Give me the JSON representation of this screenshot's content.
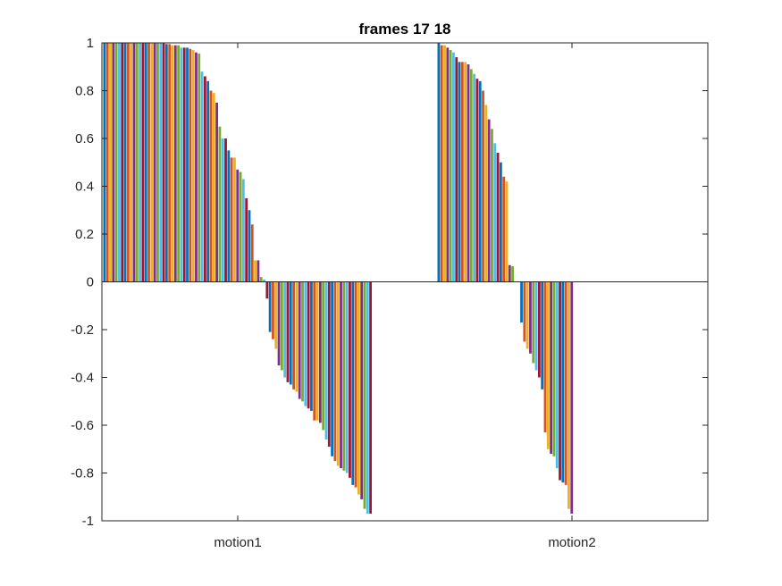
{
  "chart_data": {
    "type": "bar",
    "title": "frames 17 18",
    "xlabel": "",
    "ylabel": "",
    "categories": [
      "motion1",
      "motion2"
    ],
    "ylim": [
      -1,
      1
    ],
    "yticks": [
      1,
      0.8,
      0.6,
      0.4,
      0.2,
      0,
      -0.2,
      -0.4,
      -0.6,
      -0.8,
      -1
    ],
    "ytick_labels": [
      "1",
      "0.8",
      "0.6",
      "0.4",
      "0.2",
      "0",
      "-0.2",
      "-0.4",
      "-0.6",
      "-0.8",
      "-1"
    ],
    "grid": false,
    "legend": false,
    "colors": [
      "#0072BD",
      "#D95319",
      "#EDB120",
      "#7E2F8E",
      "#77AC30",
      "#4DBEEE",
      "#A2142F"
    ],
    "groups": [
      {
        "category": "motion1",
        "values": [
          1,
          1,
          1,
          1,
          1,
          1,
          1,
          1,
          1,
          1,
          1,
          1,
          1,
          1,
          1,
          1,
          1,
          1,
          1,
          1,
          1,
          0.995,
          0.995,
          0.99,
          0.99,
          0.99,
          0.98,
          0.98,
          0.98,
          0.975,
          0.97,
          0.96,
          0.955,
          0.88,
          0.86,
          0.84,
          0.8,
          0.79,
          0.75,
          0.65,
          0.6,
          0.6,
          0.55,
          0.52,
          0.52,
          0.47,
          0.46,
          0.43,
          0.35,
          0.3,
          0.24,
          0.09,
          0.09,
          0.02,
          0.01,
          -0.07,
          -0.21,
          -0.24,
          -0.28,
          -0.35,
          -0.37,
          -0.4,
          -0.42,
          -0.43,
          -0.45,
          -0.46,
          -0.49,
          -0.5,
          -0.52,
          -0.53,
          -0.54,
          -0.58,
          -0.58,
          -0.59,
          -0.62,
          -0.66,
          -0.69,
          -0.73,
          -0.75,
          -0.77,
          -0.78,
          -0.79,
          -0.8,
          -0.82,
          -0.85,
          -0.86,
          -0.89,
          -0.91,
          -0.95,
          -0.97,
          -0.97
        ]
      },
      {
        "category": "motion2",
        "values": [
          1,
          0.99,
          0.99,
          0.98,
          0.97,
          0.96,
          0.94,
          0.92,
          0.92,
          0.92,
          0.91,
          0.89,
          0.87,
          0.85,
          0.84,
          0.8,
          0.74,
          0.68,
          0.64,
          0.58,
          0.54,
          0.5,
          0.44,
          0.42,
          0.07,
          0.065,
          0,
          0,
          -0.17,
          -0.25,
          -0.28,
          -0.3,
          -0.34,
          -0.37,
          -0.4,
          -0.45,
          -0.63,
          -0.7,
          -0.72,
          -0.73,
          -0.78,
          -0.83,
          -0.84,
          -0.85,
          -0.95,
          -0.97
        ]
      }
    ]
  }
}
